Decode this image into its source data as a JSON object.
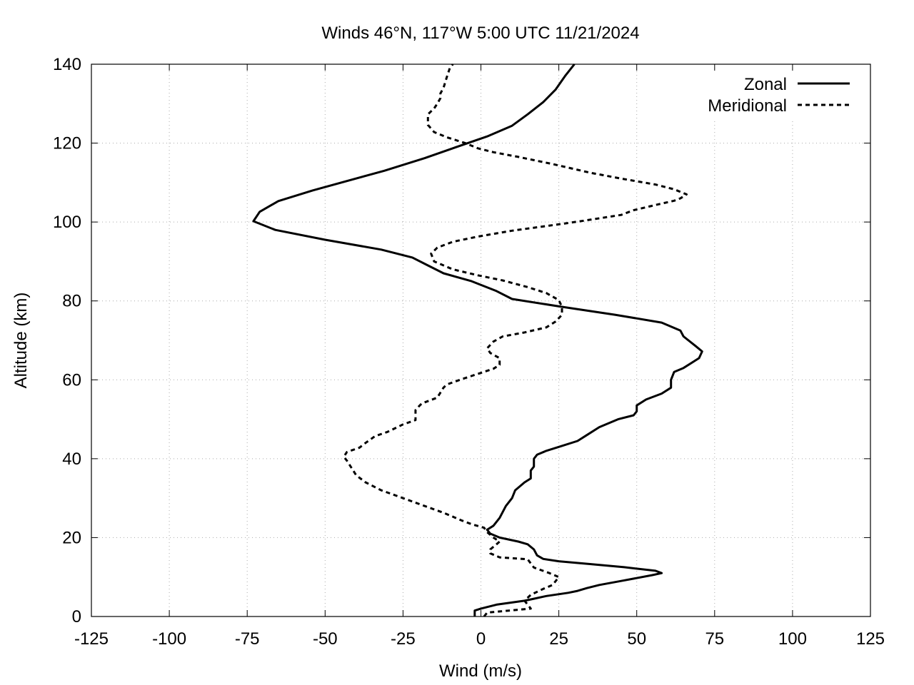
{
  "chart_data": {
    "type": "line",
    "title": "Winds 46°N, 117°W 5:00 UTC 11/21/2024",
    "xlabel": "Wind (m/s)",
    "ylabel": "Altitude (km)",
    "xlim": [
      -125,
      125
    ],
    "ylim": [
      0,
      140
    ],
    "x_ticks": [
      "-125",
      "-100",
      "-75",
      "-50",
      "-25",
      "0",
      "25",
      "50",
      "75",
      "100",
      "125"
    ],
    "y_ticks": [
      "0",
      "20",
      "40",
      "60",
      "80",
      "100",
      "120",
      "140"
    ],
    "grid": true,
    "legend_position": "top-right",
    "series": [
      {
        "name": "Zonal",
        "style": "solid",
        "color": "#000000",
        "points": [
          [
            -2,
            0
          ],
          [
            -2,
            1.5
          ],
          [
            0,
            2
          ],
          [
            5,
            3
          ],
          [
            14,
            4
          ],
          [
            17,
            4.5
          ],
          [
            21,
            5.2
          ],
          [
            28,
            6
          ],
          [
            31,
            6.5
          ],
          [
            34,
            7.2
          ],
          [
            38,
            8
          ],
          [
            45,
            9
          ],
          [
            55,
            10.5
          ],
          [
            58,
            11
          ],
          [
            56,
            11.6
          ],
          [
            46,
            12.5
          ],
          [
            35,
            13.3
          ],
          [
            25,
            14
          ],
          [
            20,
            14.6
          ],
          [
            18,
            15.5
          ],
          [
            17,
            17
          ],
          [
            15,
            18.3
          ],
          [
            12,
            19
          ],
          [
            6,
            20
          ],
          [
            3,
            21
          ],
          [
            2,
            22
          ],
          [
            4,
            23
          ],
          [
            6,
            25
          ],
          [
            8,
            28
          ],
          [
            10,
            30
          ],
          [
            11,
            32
          ],
          [
            14,
            34
          ],
          [
            16,
            35
          ],
          [
            16,
            37
          ],
          [
            17,
            38
          ],
          [
            17,
            40
          ],
          [
            18,
            41
          ],
          [
            21,
            42
          ],
          [
            25,
            43
          ],
          [
            31,
            44.5
          ],
          [
            34,
            46
          ],
          [
            38,
            48
          ],
          [
            44,
            50
          ],
          [
            49,
            51
          ],
          [
            50,
            52
          ],
          [
            50,
            53.5
          ],
          [
            53,
            55
          ],
          [
            58,
            56.5
          ],
          [
            61,
            58
          ],
          [
            61,
            60
          ],
          [
            62,
            62
          ],
          [
            65,
            63
          ],
          [
            70,
            65.5
          ],
          [
            71,
            67.2
          ],
          [
            69,
            68.5
          ],
          [
            65,
            71
          ],
          [
            64,
            72.5
          ],
          [
            58,
            74.5
          ],
          [
            43,
            76.5
          ],
          [
            26,
            78.5
          ],
          [
            10,
            80.5
          ],
          [
            5,
            82.5
          ],
          [
            -3,
            85
          ],
          [
            -12,
            87
          ],
          [
            -17,
            89
          ],
          [
            -22,
            91
          ],
          [
            -32,
            93
          ],
          [
            -50,
            95.5
          ],
          [
            -66,
            98
          ],
          [
            -73,
            100.2
          ],
          [
            -71,
            102.6
          ],
          [
            -65,
            105.3
          ],
          [
            -54,
            108
          ],
          [
            -31,
            113
          ],
          [
            -18,
            116.2
          ],
          [
            -9,
            118.7
          ],
          [
            2,
            121.7
          ],
          [
            10,
            124.4
          ],
          [
            15,
            127.3
          ],
          [
            20,
            130.4
          ],
          [
            24,
            133.6
          ],
          [
            27,
            137
          ],
          [
            30,
            140
          ]
        ]
      },
      {
        "name": "Meridional",
        "style": "dashed",
        "color": "#000000",
        "points": [
          [
            1,
            0
          ],
          [
            2,
            1
          ],
          [
            9,
            1.5
          ],
          [
            16,
            2
          ],
          [
            15,
            3
          ],
          [
            14,
            4
          ],
          [
            16,
            5.5
          ],
          [
            20,
            7
          ],
          [
            23,
            8
          ],
          [
            25,
            10
          ],
          [
            22,
            11
          ],
          [
            17,
            12.4
          ],
          [
            15,
            14.5
          ],
          [
            6,
            15
          ],
          [
            3,
            16
          ],
          [
            3,
            17
          ],
          [
            5,
            18.3
          ],
          [
            6,
            19
          ],
          [
            4,
            20
          ],
          [
            2,
            21.4
          ],
          [
            1,
            22.5
          ],
          [
            -3,
            23.4
          ],
          [
            -6,
            24.3
          ],
          [
            -12,
            26.3
          ],
          [
            -18,
            28
          ],
          [
            -25,
            30
          ],
          [
            -32,
            32
          ],
          [
            -37,
            34
          ],
          [
            -40,
            35.8
          ],
          [
            -41,
            37
          ],
          [
            -43,
            39.5
          ],
          [
            -44,
            40.5
          ],
          [
            -43,
            41.7
          ],
          [
            -39,
            42.8
          ],
          [
            -37,
            44
          ],
          [
            -34,
            45.7
          ],
          [
            -30,
            46.8
          ],
          [
            -25,
            48.7
          ],
          [
            -21,
            49.8
          ],
          [
            -21,
            51
          ],
          [
            -21,
            52.3
          ],
          [
            -20,
            53.2
          ],
          [
            -19,
            54
          ],
          [
            -14,
            55.5
          ],
          [
            -12,
            58
          ],
          [
            -11,
            58.8
          ],
          [
            -6,
            60.2
          ],
          [
            4,
            62.8
          ],
          [
            6,
            63.8
          ],
          [
            6,
            65.5
          ],
          [
            3,
            66.8
          ],
          [
            2,
            68
          ],
          [
            4,
            69.7
          ],
          [
            7,
            71
          ],
          [
            14,
            72
          ],
          [
            21,
            73.3
          ],
          [
            24,
            74.8
          ],
          [
            26,
            76.5
          ],
          [
            26,
            78.5
          ],
          [
            25,
            80.2
          ],
          [
            21,
            82
          ],
          [
            15,
            83.5
          ],
          [
            7,
            85.2
          ],
          [
            -1,
            86.5
          ],
          [
            -9,
            88
          ],
          [
            -15,
            90
          ],
          [
            -16,
            92
          ],
          [
            -14,
            93.5
          ],
          [
            -9,
            95
          ],
          [
            -1,
            96.3
          ],
          [
            10,
            97.8
          ],
          [
            24,
            99.3
          ],
          [
            32,
            100.2
          ],
          [
            45,
            101.8
          ],
          [
            49,
            103
          ],
          [
            57,
            104.5
          ],
          [
            62,
            105.4
          ],
          [
            64,
            106
          ],
          [
            66,
            107
          ],
          [
            62,
            108.3
          ],
          [
            56,
            109.5
          ],
          [
            45,
            111
          ],
          [
            35,
            112.5
          ],
          [
            23,
            114.7
          ],
          [
            12,
            116.5
          ],
          [
            4,
            117.7
          ],
          [
            -1,
            118.7
          ],
          [
            -5,
            120
          ],
          [
            -11,
            121.5
          ],
          [
            -15,
            122.8
          ],
          [
            -17,
            124.6
          ],
          [
            -17,
            127.3
          ],
          [
            -15,
            128.8
          ],
          [
            -14,
            130
          ],
          [
            -13,
            131.4
          ],
          [
            -13,
            132.6
          ],
          [
            -12,
            134
          ],
          [
            -11,
            136.6
          ],
          [
            -10,
            139
          ],
          [
            -9,
            140
          ]
        ]
      }
    ]
  }
}
